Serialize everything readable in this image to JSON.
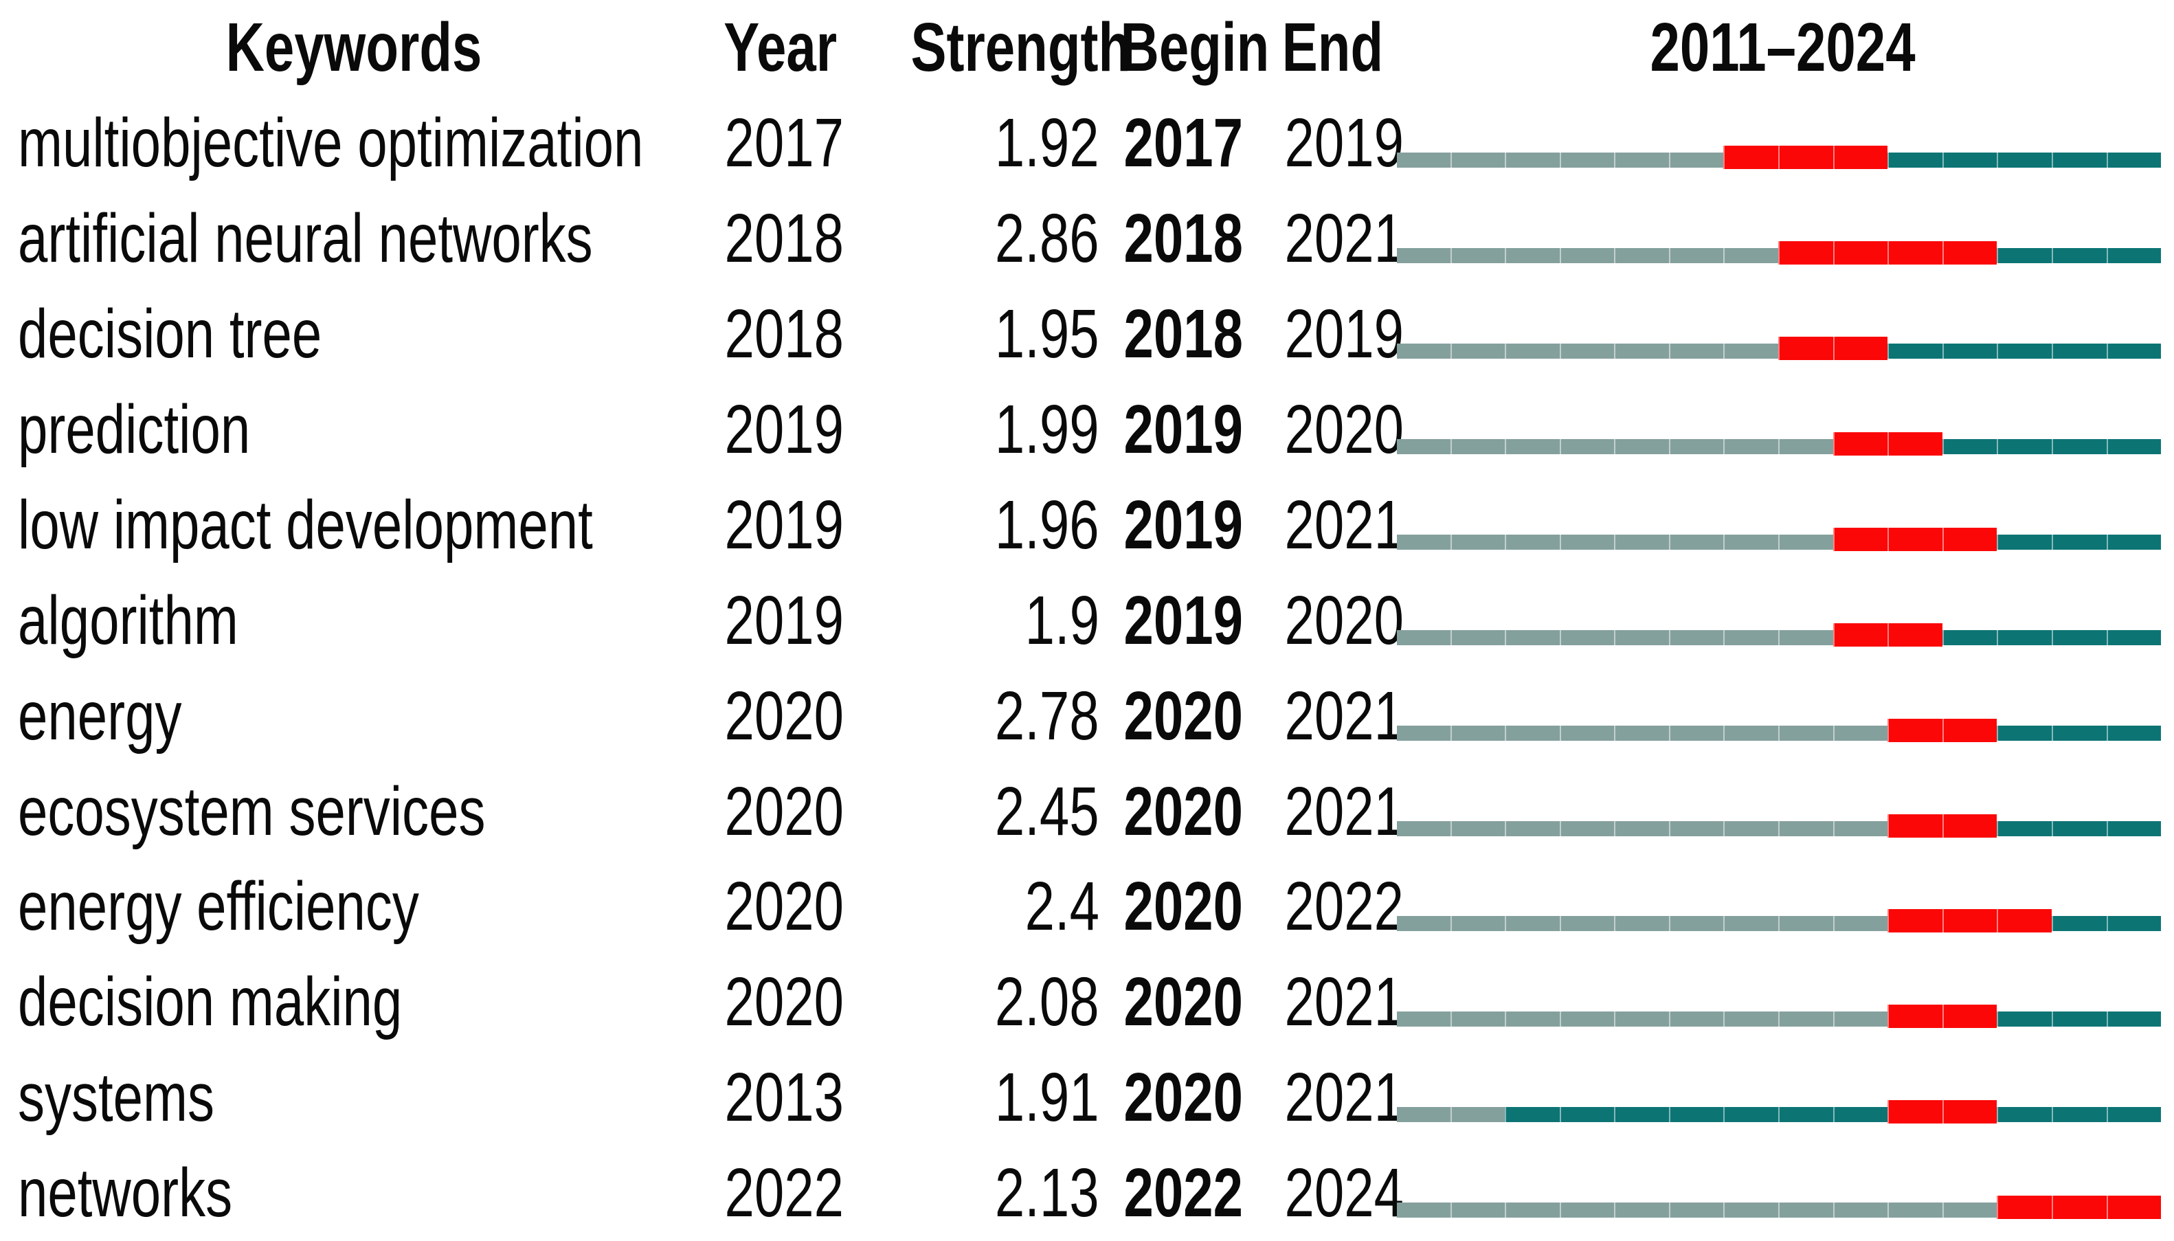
{
  "chart_data": {
    "type": "table",
    "description": "Keywords with strongest citation bursts; timeline bars show pre-appearance (pale), active (teal) and burst (red) years",
    "columns": [
      "Keywords",
      "Year",
      "Strength",
      "Begin",
      "End",
      "2011–2024"
    ],
    "timeline": {
      "start": 2011,
      "end": 2024,
      "label": "2011–2024"
    },
    "colors": {
      "pre_burst": "#84a09d",
      "burst": "#fb0707",
      "post_burst": "#0d7474"
    },
    "rows": [
      {
        "keyword": "multiobjective optimization",
        "year": "2017",
        "strength": "1.92",
        "begin": "2017",
        "end": "2019"
      },
      {
        "keyword": "artificial neural networks",
        "year": "2018",
        "strength": "2.86",
        "begin": "2018",
        "end": "2021"
      },
      {
        "keyword": "decision tree",
        "year": "2018",
        "strength": "1.95",
        "begin": "2018",
        "end": "2019"
      },
      {
        "keyword": "prediction",
        "year": "2019",
        "strength": "1.99",
        "begin": "2019",
        "end": "2020"
      },
      {
        "keyword": "low impact development",
        "year": "2019",
        "strength": "1.96",
        "begin": "2019",
        "end": "2021"
      },
      {
        "keyword": "algorithm",
        "year": "2019",
        "strength": "1.9",
        "begin": "2019",
        "end": "2020"
      },
      {
        "keyword": "energy",
        "year": "2020",
        "strength": "2.78",
        "begin": "2020",
        "end": "2021"
      },
      {
        "keyword": "ecosystem services",
        "year": "2020",
        "strength": "2.45",
        "begin": "2020",
        "end": "2021"
      },
      {
        "keyword": "energy efficiency",
        "year": "2020",
        "strength": "2.4",
        "begin": "2020",
        "end": "2022"
      },
      {
        "keyword": "decision making",
        "year": "2020",
        "strength": "2.08",
        "begin": "2020",
        "end": "2021"
      },
      {
        "keyword": "systems",
        "year": "2013",
        "strength": "1.91",
        "begin": "2020",
        "end": "2021"
      },
      {
        "keyword": "networks",
        "year": "2022",
        "strength": "2.13",
        "begin": "2022",
        "end": "2024"
      }
    ]
  }
}
